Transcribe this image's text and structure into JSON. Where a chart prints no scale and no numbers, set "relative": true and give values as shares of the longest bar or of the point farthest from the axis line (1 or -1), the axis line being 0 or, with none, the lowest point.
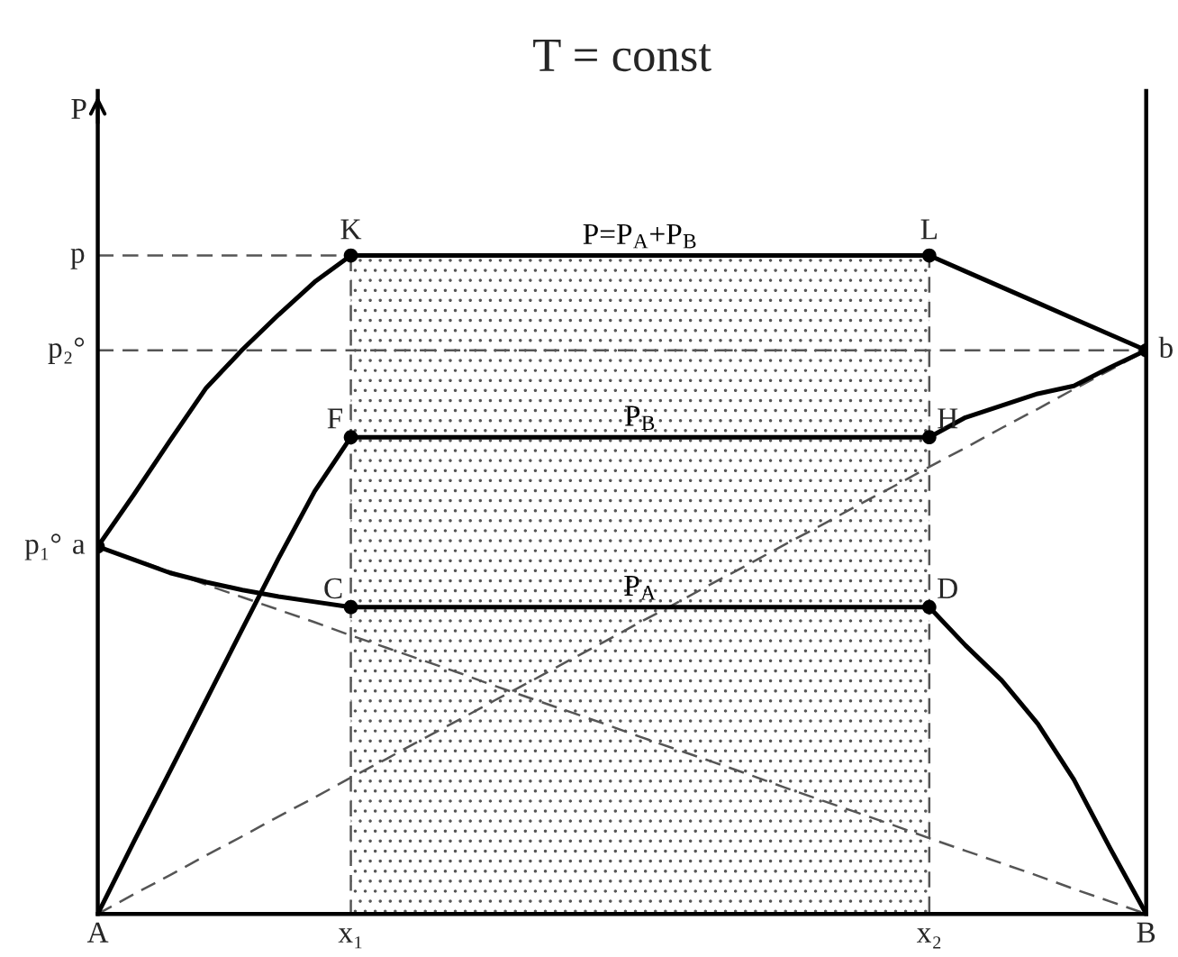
{
  "chart_data": {
    "type": "line",
    "relative": true,
    "title": "T = const",
    "ylabel": "P",
    "categories": [
      "A",
      null,
      null,
      null,
      null,
      null,
      null,
      "x₁",
      null,
      null,
      null,
      null,
      null,
      null,
      null,
      null,
      null,
      null,
      null,
      null,
      null,
      null,
      null,
      "x₂",
      null,
      null,
      null,
      null,
      null,
      "B"
    ],
    "grid": false,
    "legend": false,
    "series": [
      {
        "type": "area",
        "color": "#555555",
        "line_style": "dashed",
        "values": [
          null,
          null,
          null,
          null,
          null,
          null,
          null,
          1,
          1,
          1,
          1,
          1,
          1,
          1,
          1,
          1,
          1,
          1,
          1,
          1,
          1,
          1,
          1,
          1,
          null,
          null,
          null,
          null,
          null,
          null
        ]
      },
      {
        "color": "#555555",
        "line_style": "dashed",
        "values": [
          0,
          0.03,
          0.059,
          0.089,
          0.118,
          0.148,
          0.177,
          0.207,
          0.236,
          0.266,
          0.295,
          0.325,
          0.354,
          0.384,
          0.413,
          0.443,
          0.472,
          0.502,
          0.531,
          0.561,
          0.59,
          0.62,
          0.649,
          0.679,
          0.708,
          0.738,
          0.767,
          0.797,
          0.826,
          0.856
        ]
      },
      {
        "color": "#555555",
        "line_style": "dashed",
        "values": [
          0.558,
          0.539,
          0.52,
          0.5,
          0.481,
          0.462,
          0.443,
          0.423,
          0.404,
          0.385,
          0.366,
          0.346,
          0.327,
          0.308,
          0.289,
          0.269,
          0.25,
          0.231,
          0.212,
          0.192,
          0.173,
          0.154,
          0.135,
          0.115,
          0.096,
          0.077,
          0.058,
          0.038,
          0.019,
          0
        ]
      },
      {
        "color": "#555555",
        "line_style": "dashed",
        "values": [
          1,
          1,
          1,
          1,
          1,
          1,
          1,
          1,
          null,
          null,
          null,
          null,
          null,
          null,
          null,
          null,
          null,
          null,
          null,
          null,
          null,
          null,
          null,
          null,
          null,
          null,
          null,
          null,
          null,
          null
        ]
      },
      {
        "color": "#555555",
        "line_style": "dashed",
        "values": [
          0.856,
          0.856,
          0.856,
          0.856,
          0.856,
          0.856,
          0.856,
          0.856,
          0.856,
          0.856,
          0.856,
          0.856,
          0.856,
          0.856,
          0.856,
          0.856,
          0.856,
          0.856,
          0.856,
          0.856,
          0.856,
          0.856,
          0.856,
          0.856,
          0.856,
          0.856,
          0.856,
          0.856,
          0.856,
          0.856
        ]
      },
      {
        "color": "#000000",
        "line_style": "solid",
        "values": [
          0.558,
          0.637,
          0.719,
          0.799,
          0.857,
          0.91,
          0.96,
          1,
          null,
          null,
          null,
          null,
          null,
          null,
          null,
          null,
          null,
          null,
          null,
          null,
          null,
          null,
          null,
          null,
          null,
          null,
          null,
          null,
          null,
          null
        ]
      },
      {
        "name": "P=P$_{A}$+P$_{B}$",
        "color": "#000000",
        "line_style": "solid",
        "values": [
          null,
          null,
          null,
          null,
          null,
          null,
          null,
          1,
          1,
          1,
          1,
          1,
          1,
          1,
          1,
          1,
          1,
          1,
          1,
          1,
          1,
          1,
          1,
          1,
          null,
          null,
          null,
          null,
          null,
          null
        ]
      },
      {
        "color": "#000000",
        "line_style": "solid",
        "values": [
          null,
          null,
          null,
          null,
          null,
          null,
          null,
          null,
          null,
          null,
          null,
          null,
          null,
          null,
          null,
          null,
          null,
          null,
          null,
          null,
          null,
          null,
          null,
          1,
          0.976,
          0.952,
          0.928,
          0.904,
          0.88,
          0.856
        ]
      },
      {
        "color": "#000000",
        "line_style": "solid",
        "values": [
          0,
          0.11,
          0.217,
          0.325,
          0.433,
          0.54,
          0.642,
          0.724,
          null,
          null,
          null,
          null,
          null,
          null,
          null,
          null,
          null,
          null,
          null,
          null,
          null,
          null,
          null,
          null,
          null,
          null,
          null,
          null,
          null,
          null
        ]
      },
      {
        "name": "P$_{B}$",
        "color": "#000000",
        "line_style": "solid",
        "values": [
          null,
          null,
          null,
          null,
          null,
          null,
          null,
          0.724,
          0.724,
          0.724,
          0.724,
          0.724,
          0.724,
          0.724,
          0.724,
          0.724,
          0.724,
          0.724,
          0.724,
          0.724,
          0.724,
          0.724,
          0.724,
          0.724,
          null,
          null,
          null,
          null,
          null,
          null
        ]
      },
      {
        "color": "#000000",
        "line_style": "solid",
        "values": [
          null,
          null,
          null,
          null,
          null,
          null,
          null,
          null,
          null,
          null,
          null,
          null,
          null,
          null,
          null,
          null,
          null,
          null,
          null,
          null,
          null,
          null,
          null,
          0.724,
          0.754,
          0.772,
          0.79,
          0.802,
          0.83,
          0.856
        ]
      },
      {
        "color": "#000000",
        "line_style": "solid",
        "values": [
          0.558,
          0.538,
          0.518,
          0.504,
          0.492,
          0.482,
          0.474,
          0.466,
          null,
          null,
          null,
          null,
          null,
          null,
          null,
          null,
          null,
          null,
          null,
          null,
          null,
          null,
          null,
          null,
          null,
          null,
          null,
          null,
          null,
          null
        ]
      },
      {
        "name": "P$_{A}$",
        "color": "#000000",
        "line_style": "solid",
        "values": [
          null,
          null,
          null,
          null,
          null,
          null,
          null,
          0.466,
          0.466,
          0.466,
          0.466,
          0.466,
          0.466,
          0.466,
          0.466,
          0.466,
          0.466,
          0.466,
          0.466,
          0.466,
          0.466,
          0.466,
          0.466,
          0.466,
          null,
          null,
          null,
          null,
          null,
          null
        ]
      },
      {
        "color": "#000000",
        "line_style": "solid",
        "values": [
          null,
          null,
          null,
          null,
          null,
          null,
          null,
          null,
          null,
          null,
          null,
          null,
          null,
          null,
          null,
          null,
          null,
          null,
          null,
          null,
          null,
          null,
          null,
          0.466,
          0.408,
          0.355,
          0.289,
          0.204,
          0.1,
          0
        ]
      },
      {
        "type": "scatter",
        "color": "#000000",
        "marker": "circle",
        "values": [
          null,
          null,
          null,
          null,
          null,
          null,
          null,
          1,
          null,
          null,
          null,
          null,
          null,
          null,
          null,
          null,
          null,
          null,
          null,
          null,
          null,
          null,
          null,
          1,
          null,
          null,
          null,
          null,
          null,
          0.856
        ]
      },
      {
        "type": "scatter",
        "color": "#000000",
        "marker": "circle",
        "values": [
          null,
          null,
          null,
          null,
          null,
          null,
          null,
          0.724,
          null,
          null,
          null,
          null,
          null,
          null,
          null,
          null,
          null,
          null,
          null,
          null,
          null,
          null,
          null,
          0.724,
          null,
          null,
          null,
          null,
          null,
          null
        ]
      },
      {
        "type": "scatter",
        "color": "#000000",
        "marker": "circle",
        "values": [
          0.558,
          null,
          null,
          null,
          null,
          null,
          null,
          0.466,
          null,
          null,
          null,
          null,
          null,
          null,
          null,
          null,
          null,
          null,
          null,
          null,
          null,
          null,
          null,
          0.466,
          null,
          null,
          null,
          null,
          null,
          null
        ]
      }
    ],
    "annotations": [
      {
        "text": "p",
        "x": "A",
        "y": 1
      },
      {
        "text": "p₂°",
        "x": "A",
        "y": 0.856
      },
      {
        "text": "a",
        "x": "A",
        "y": 0.558
      },
      {
        "text": "p₁°",
        "x": "A",
        "y": 0.558
      },
      {
        "text": "b",
        "x": "B",
        "y": 0.856
      },
      {
        "text": "K",
        "x": "x₁",
        "y": 1
      },
      {
        "text": "L",
        "x": "x₂",
        "y": 1
      },
      {
        "text": "F",
        "x": "x₁",
        "y": 0.724
      },
      {
        "text": "H",
        "x": "x₂",
        "y": 0.724
      },
      {
        "text": "C",
        "x": "x₁",
        "y": 0.466
      },
      {
        "text": "D",
        "x": "x₂",
        "y": 0.466
      }
    ]
  }
}
